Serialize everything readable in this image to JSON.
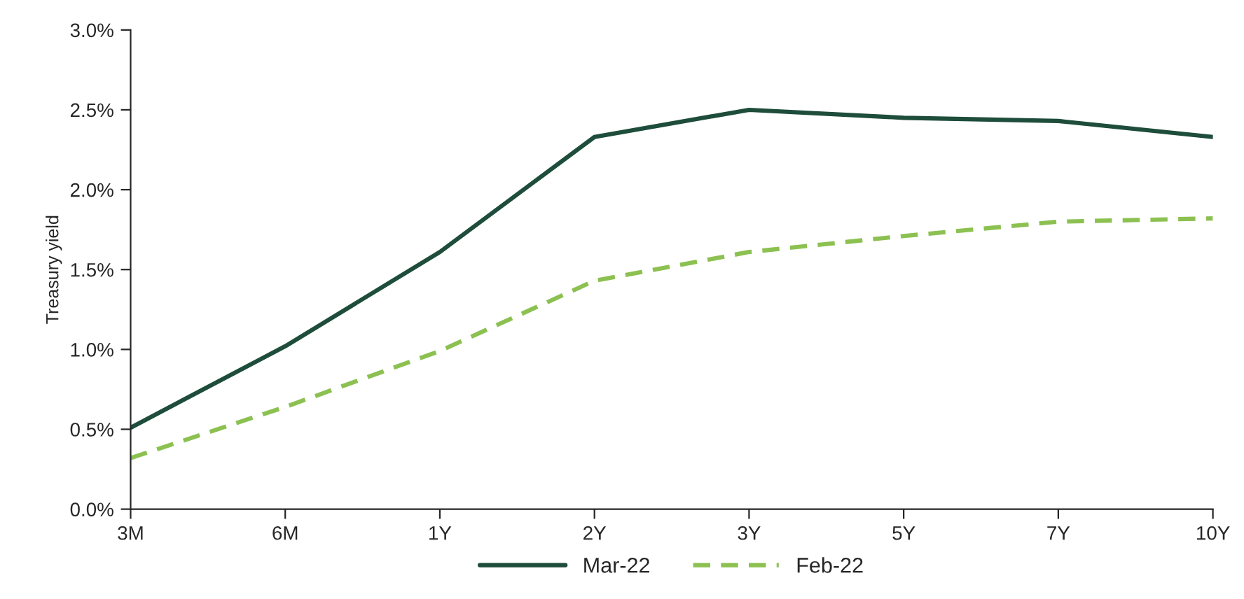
{
  "chart_data": {
    "type": "line",
    "ylabel": "Treasury yield",
    "categories": [
      "3M",
      "6M",
      "1Y",
      "2Y",
      "3Y",
      "5Y",
      "7Y",
      "10Y"
    ],
    "series": [
      {
        "name": "Mar-22",
        "color": "#1e4d3b",
        "line_style": "solid",
        "values": [
          0.51,
          1.02,
          1.61,
          2.33,
          2.5,
          2.45,
          2.43,
          2.33
        ]
      },
      {
        "name": "Feb-22",
        "color": "#8cc152",
        "line_style": "dashed",
        "values": [
          0.32,
          0.64,
          0.99,
          1.43,
          1.61,
          1.71,
          1.8,
          1.82
        ]
      }
    ],
    "ylim": [
      0,
      3
    ],
    "yticks": [
      {
        "value": 0,
        "label": "0.0%"
      },
      {
        "value": 0.5,
        "label": "0.5%"
      },
      {
        "value": 1,
        "label": "1.0%"
      },
      {
        "value": 1.5,
        "label": "1.5%"
      },
      {
        "value": 2,
        "label": "2.0%"
      },
      {
        "value": 2.5,
        "label": "2.5%"
      },
      {
        "value": 3,
        "label": "3.0%"
      }
    ],
    "grid": false,
    "legend": "bottom",
    "marker": "none"
  }
}
